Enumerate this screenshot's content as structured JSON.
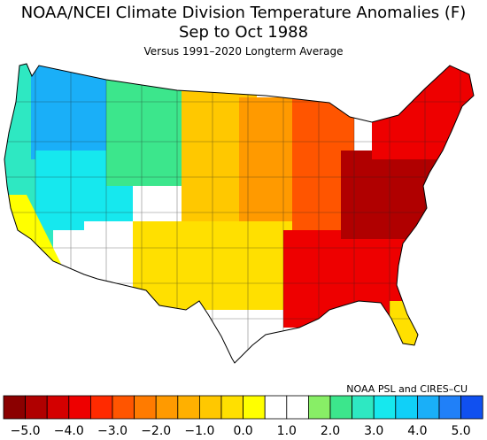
{
  "header": {
    "line1": "NOAA/NCEI Climate Division Temperature Anomalies (F)",
    "line2": "Sep to Oct 1988",
    "line3": "Versus 1991–2020 Longterm Average"
  },
  "credit": "NOAA PSL and CIRES–CU",
  "colorbar": {
    "colors": [
      "#8b0000",
      "#b00000",
      "#d40000",
      "#ee0000",
      "#ff2a00",
      "#ff5500",
      "#ff7b00",
      "#ff9a00",
      "#ffb000",
      "#ffc800",
      "#ffe000",
      "#ffff00",
      "#ffffff",
      "#ffffff",
      "#88ee66",
      "#3ce68c",
      "#2ee8c2",
      "#16e8ee",
      "#10d0f8",
      "#1aaff8",
      "#2080f8",
      "#1050f0"
    ],
    "tick_labels": [
      "−5.0",
      "−4.0",
      "−3.0",
      "−2.0",
      "−1.0",
      "0.0",
      "1.0",
      "2.0",
      "3.0",
      "4.0",
      "5.0"
    ]
  },
  "regions": [
    {
      "name": "pacific-northwest-coast",
      "color": "#2ee8c2"
    },
    {
      "name": "idaho-western-montana",
      "color": "#1aaff8"
    },
    {
      "name": "great-basin",
      "color": "#16e8ee"
    },
    {
      "name": "california-coast",
      "color": "#ffff00"
    },
    {
      "name": "central-montana",
      "color": "#3ce68c"
    },
    {
      "name": "southwest-desert",
      "color": "#ffffff"
    },
    {
      "name": "northern-plains",
      "color": "#ffc800"
    },
    {
      "name": "central-plains",
      "color": "#ff9a00"
    },
    {
      "name": "texas-west",
      "color": "#ffe000"
    },
    {
      "name": "midwest",
      "color": "#ff5500"
    },
    {
      "name": "southeast",
      "color": "#ee0000"
    },
    {
      "name": "mid-atlantic",
      "color": "#b00000"
    },
    {
      "name": "new-england",
      "color": "#ee0000"
    },
    {
      "name": "florida-peninsula",
      "color": "#ffe000"
    }
  ]
}
